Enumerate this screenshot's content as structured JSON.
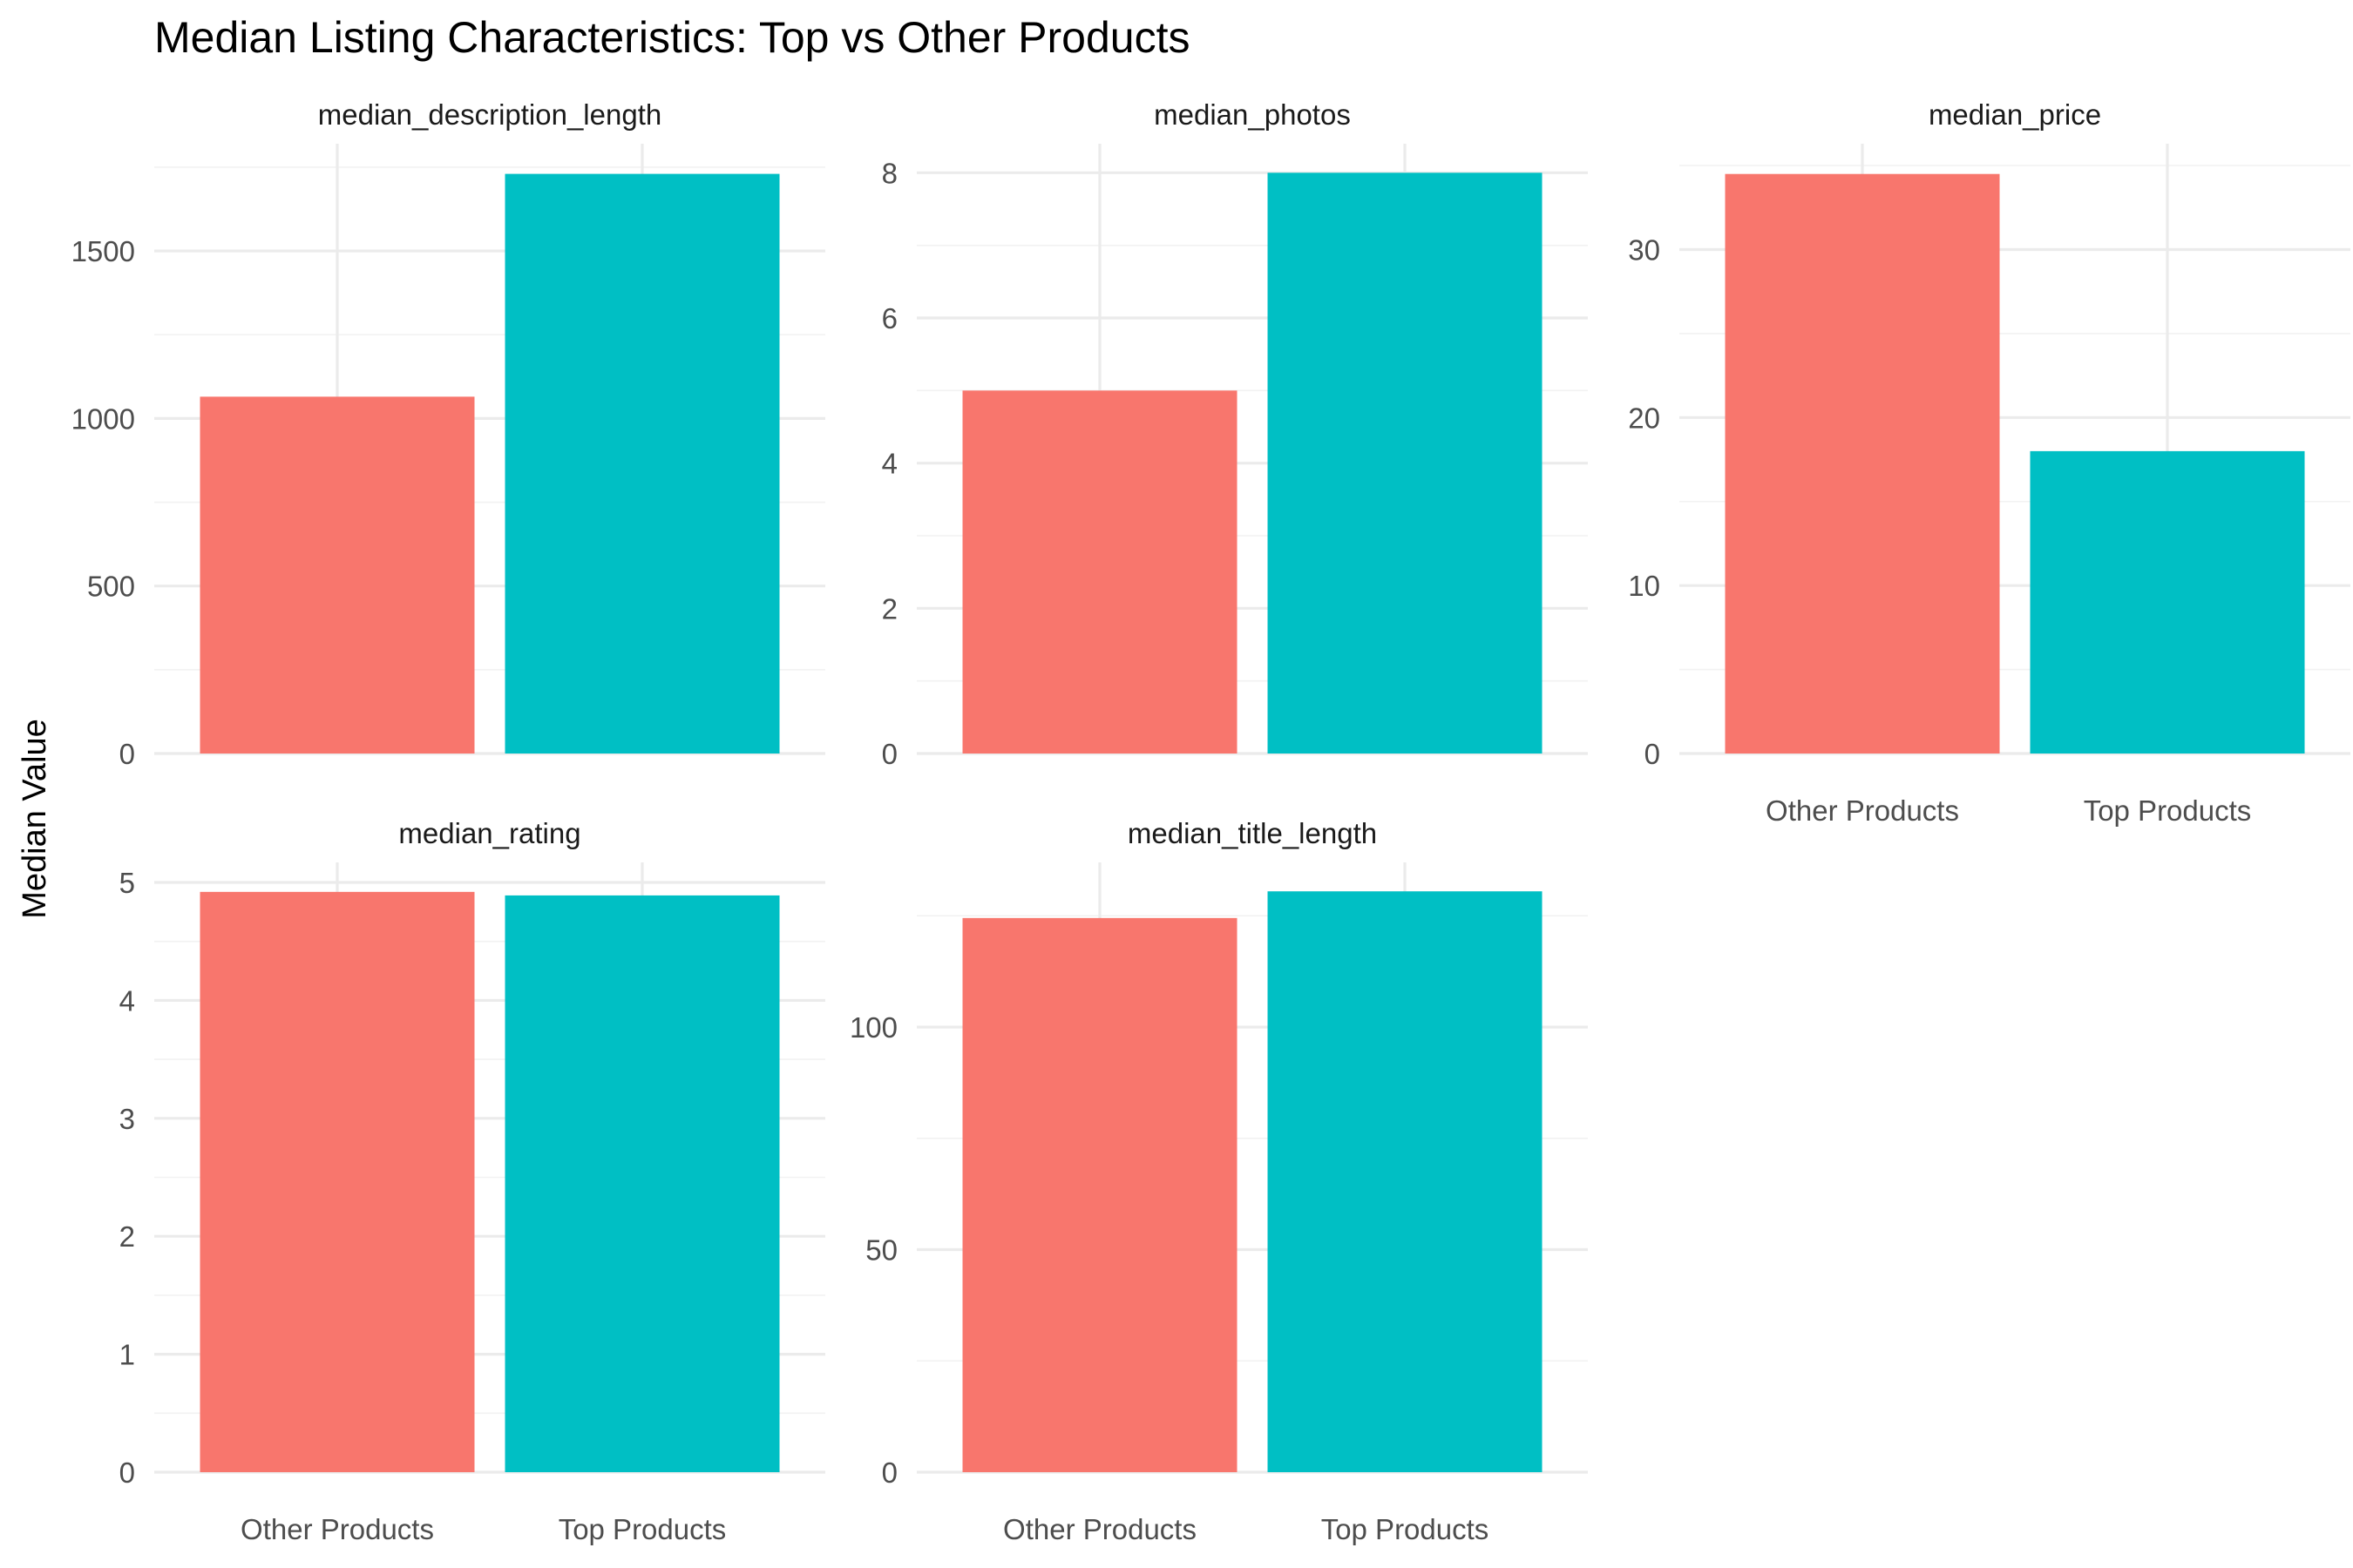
{
  "chart_data": {
    "type": "bar",
    "title": "Median Listing Characteristics: Top vs Other Products",
    "ylabel": "Median Value",
    "xlabel": "",
    "legend": "none",
    "grid": true,
    "categories": [
      "Other Products",
      "Top Products"
    ],
    "colors": [
      "#F8766D",
      "#00BFC4"
    ],
    "panels": [
      {
        "name": "median_description_length",
        "values": [
          1065,
          1730
        ],
        "ylim": [
          0,
          1820
        ],
        "yticks": [
          0,
          500,
          1000,
          1500
        ],
        "show_x_labels": false
      },
      {
        "name": "median_photos",
        "values": [
          5,
          8
        ],
        "ylim": [
          0,
          8.4
        ],
        "yticks": [
          0,
          2,
          4,
          6,
          8
        ],
        "show_x_labels": false
      },
      {
        "name": "median_price",
        "values": [
          34.5,
          18
        ],
        "ylim": [
          0,
          36.3
        ],
        "yticks": [
          0,
          10,
          20,
          30
        ],
        "show_x_labels": true
      },
      {
        "name": "median_rating",
        "values": [
          4.92,
          4.89
        ],
        "ylim": [
          0,
          5.17
        ],
        "yticks": [
          0,
          1,
          2,
          3,
          4,
          5
        ],
        "show_x_labels": true
      },
      {
        "name": "median_title_length",
        "values": [
          124.5,
          130.5
        ],
        "ylim": [
          0,
          137
        ],
        "yticks": [
          0,
          50,
          100
        ],
        "show_x_labels": true
      }
    ]
  }
}
